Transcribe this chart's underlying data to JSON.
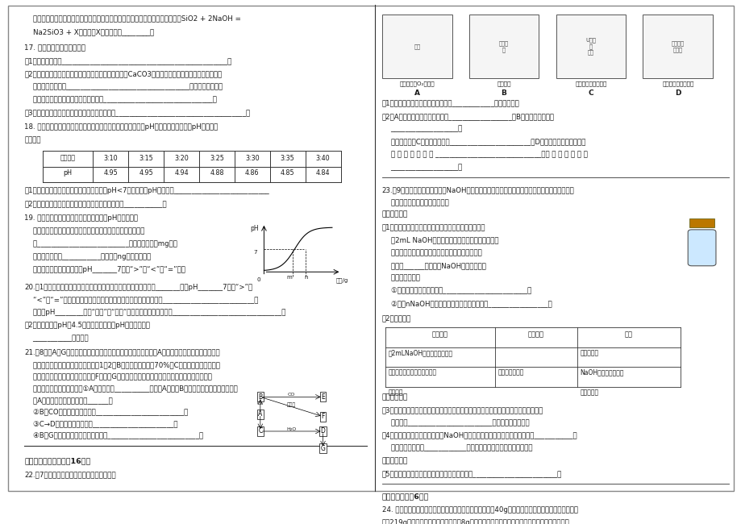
{
  "bg_color": "#ffffff",
  "text_color": "#1a1a1a",
  "line_color": "#333333",
  "page_width": 9.2,
  "page_height": 6.5,
  "top_text": [
    "    氧化硬缓慢地发生反应，产物使瓶口与瓶塞粘合在一起，反应的化学方程式为：SiO2 + 2NaOH =",
    "    Na2SiO3 + X，试推断X的化学式为________。"
  ],
  "q17_title": "17. 用化学方程式说明问题：",
  "q17_items": [
    "（1）用盐酸除铁锈_______________________________________________；",
    "（2）烧水的铝壶中常结有一层水外（水外的主要成分是CaCO3），用适量的稀盐酹可以将它除去，反",
    "    应的化学方程式是___________________________________，若盐酹的用量过",
    "    多，会损坏铝壶，反应的化学方程式是_______________________________；",
    "（3）用氮氧化锠溶液来吸收有毒的二氧化硫气体_____________________________________。"
  ],
  "q18_title": "18. 某校「酸雨」测量小组的同学，取刚降落的雨水的水样，用pH计每隔五分钟测一次pH，其数据",
  "q18_sub": "见下表：",
  "table_headers": [
    "测定时间",
    "3:10",
    "3:15",
    "3:20",
    "3:25",
    "3:30",
    "3:35",
    "3:40"
  ],
  "table_row2": [
    "pH",
    "4.95",
    "4.95",
    "4.94",
    "4.88",
    "4.86",
    "4.85",
    "4.84"
  ],
  "q18_q1": "（1）根据所学知识，推测出「正常雨水」的pH<7，引起这种pH的原因是___________________________",
  "q18_q2": "（2）根据以上数据，判断所降雨水是否为「酸雨」？___________。",
  "q19_title": "19. 用熟石灰中和一定量的盐酹时，溶液的pH与加入的熟",
  "q19_lines": [
    "    石灰质量的关系如右图所示。熟石灰与盐酹反应的化学方程式",
    "    为__________________________；当加入熟石灰mg时，",
    "    溶液中的溶质为___________。若改用ng氮氧化锠与相",
    "    同量盐酹反应，所得溶液的pH_______7（填“>”、“<”或“=”）。"
  ],
  "q20_title": "20.（1）向盛有氮氧化锠溶液的锥形瓶里滴入几滴酚酸溶液，溶液变_______色，pH_______7（填“>”、",
  "q20_lines": [
    "    “<”或“=”），逐滴向锥形瓶中滴入盐酹并振荡，观察到的现象是__________________________，",
    "    溶液的pH________（填“增大”或“减小”），反应的化学方程式为_______________________________；",
    "（2）有一瓶溶液pH是4.5，如果要使溶液的pH升高，可以用",
    "    ___________的方法。"
  ],
  "q21_title": "21.（8分）A～G七种物质之间具有如下图所示的转化关系。已知：A是一种含铁的矿石的主要成分，",
  "q21_lines": [
    "    其中金属与非金属元素的原子个数比1：2；B中铁的质量分数为70%，C是有刺激性气味的无色",
    "    气体，它是形成酸雨的物质之一；F可溶于G的稀溶液并产生气体，该气体是有利于环境保护的理",
    "    想燃料。请回答下列问题：①A的化学式为__________，已知A转化为B时余金属元素的化合价升高，",
    "    则A中非金属元素的化合价是______。",
    "    ②B与CO反应的化学方程式是_________________________，",
    "    ③C→D反应的化学方程式是_______________________，",
    "    ④B与G的稀溶液反应的化学方程式是__________________________。"
  ],
  "section3_title": "三、我会实验探究：（16分）",
  "q22_title": "22.（7分）以下是初中化学的一些基本实验：",
  "q22_q1": "（1）上述实验中不能达到实验目的是____________（填字母）。",
  "q22_q2": "（2）A中可燃物应取过量的原因是__________________；B中玻璃棒的作用是",
  "q22_q2b": "    ___________________；",
  "q22_q3": "    一段时间后，C中的实验现象为_______________________；D中硬质玻璃管内发生反应",
  "q22_q3b": "    的 化 学 方 程 式 为 ______________________________，酒 精 灯 的 作 用 是",
  "q22_q3c": "    ___________________。",
  "q23_title": "23.（9分）某化学兴趣小组对「NaOH溶液与稀盐酹是否恰好完全反应」进行探究。请你参与他们",
  "q23_sub": "    的探究活动，并回答有关问题。",
  "q23_explore": "【实验探究】",
  "q23_p1_title": "（1）方案一：某同学按右图所示的方法先向试管中加入",
  "q23_p1_lines": [
    "    约2mL NaOH溶液，再滴入几滴酚酸溶液，溶液变",
    "    红，然后慢慢滴入稀盐酹，边滴边振荡，直至溶液",
    "    恰好变______色，证明NaOH溶液与稀盐酹",
    "    恰好完全反应。",
    "    ①请指出右图操作中的错误________________________。",
    "    ②写出nNaOH溶液与稀盐酹反应的化学方程式_________________。"
  ],
  "q23_p2_title": "（2）方案二：",
  "table2_headers": [
    "实验步骤",
    "实验现象",
    "结论"
  ],
  "table2_row1a": "取2mLNaOH溶液于试管中，若",
  "table2_row1b": "稀盐酹过量",
  "table2_row2a": "加入一定量的稀盐酹，振荡摇",
  "table2_row2b": "若没有明显现象",
  "table2_row2c": "NaOH溶液与稀盐酹恰",
  "table2_row3a": "加入镁条",
  "table2_row3b": "好完全反应",
  "q23_reflect": "【实验反思】",
  "q23_r1": "（3）方案一在滴入稀盐酹的过程中，若观察到曾有少量气泡出现，请分析产生气泡的原",
  "q23_r1b": "    因可能是________________________（写出一条即可）。",
  "q23_r2": "（4）有同学提出方案二不能证明NaOH溶液与稀盐酹恰好完全反应，其原因是___________，",
  "q23_r2b": "    为此，还需要选择____________（填一种试剂），再进行实验即可。",
  "q23_extend": "【拓展应用】",
  "q23_e1": "（5）请举一例说明中和反应在生产生活中的应用________________________。",
  "section4_title": "四、我会算：（6分）",
  "q24_title": "24. 为了测定某赤铁矿石中氧化铁的质量分数，取矿石样哈40g，加入盐酹，恰好完全反应时，共用去",
  "q24_sub": "盐酹219g，过滤、洗涤、干燥后得滤核8g（矿石中的杂质既不溶于水也不与盐酹反应）。计算："
}
